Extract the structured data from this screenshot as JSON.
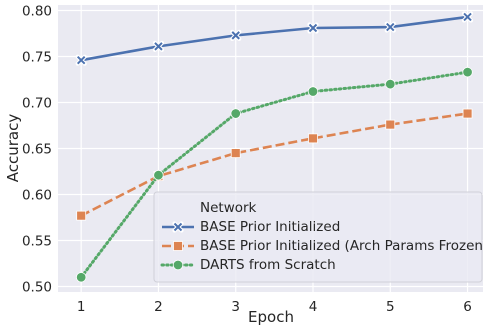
{
  "chart_data": {
    "type": "line",
    "title": "",
    "xlabel": "Epoch",
    "ylabel": "Accuracy",
    "x": [
      1,
      2,
      3,
      4,
      5,
      6
    ],
    "xlim": [
      0.7,
      6.2
    ],
    "ylim": [
      0.494,
      0.806
    ],
    "x_ticks": [
      "1",
      "2",
      "3",
      "4",
      "5",
      "6"
    ],
    "y_ticks": [
      "0.50",
      "0.55",
      "0.60",
      "0.65",
      "0.70",
      "0.75",
      "0.80"
    ],
    "grid": true,
    "legend": {
      "title": "Network",
      "placement": "lower-right"
    },
    "colors": {
      "background": "#eaeaf2",
      "grid": "#ffffff"
    },
    "series": [
      {
        "name": "BASE Prior Initialized",
        "values": [
          0.746,
          0.761,
          0.773,
          0.781,
          0.782,
          0.793
        ],
        "color": "#4c72b0",
        "line_style": "solid",
        "marker": "x"
      },
      {
        "name": "BASE Prior Initialized (Arch Params Frozen)",
        "values": [
          0.577,
          0.62,
          0.645,
          0.661,
          0.676,
          0.688
        ],
        "color": "#dd8452",
        "line_style": "dashed",
        "marker": "square"
      },
      {
        "name": "DARTS from Scratch",
        "values": [
          0.51,
          0.621,
          0.688,
          0.712,
          0.72,
          0.733
        ],
        "color": "#55a868",
        "line_style": "dotted",
        "marker": "circle"
      }
    ]
  }
}
